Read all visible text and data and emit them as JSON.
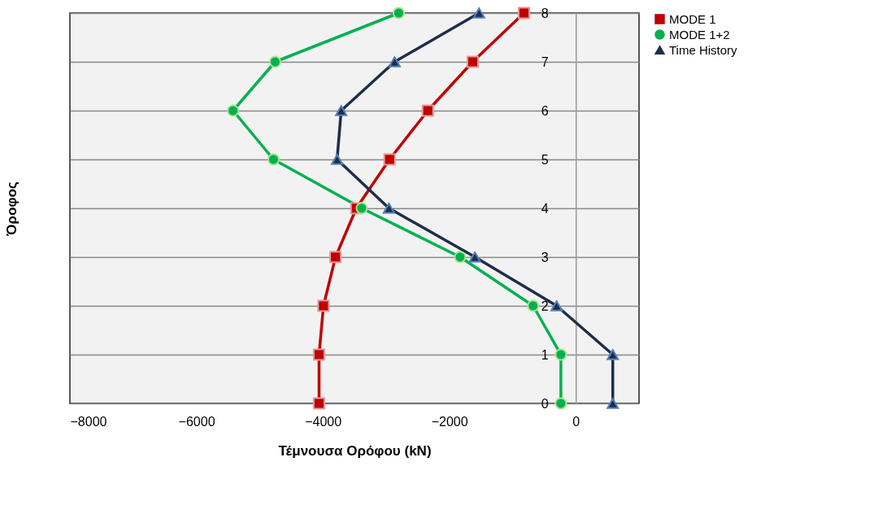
{
  "chart_data": {
    "type": "line",
    "xlabel": "Τέμνουσα Ορόφου (kN)",
    "ylabel": "Όροφος",
    "xlim": [
      -8000,
      1000
    ],
    "xticks": [
      -8000,
      -6000,
      -4000,
      -2000,
      0
    ],
    "ylim": [
      0,
      8
    ],
    "yticks": [
      0,
      1,
      2,
      3,
      4,
      5,
      6,
      7,
      8
    ],
    "grid": "y",
    "legend": "right",
    "line_style": "solid",
    "series": [
      {
        "name": "MODE 1",
        "color": "#c00000",
        "marker": "square",
        "x": [
          -4060,
          -4060,
          -3990,
          -3800,
          -3470,
          -2945,
          -2340,
          -1630,
          -820
        ],
        "values": [
          0,
          1,
          2,
          3,
          4,
          5,
          6,
          7,
          8
        ]
      },
      {
        "name": "MODE 1+2",
        "color": "#00b050",
        "marker": "circle",
        "x": [
          -236,
          -236,
          -675,
          -1830,
          -3385,
          -4780,
          -5420,
          -4755,
          -2800
        ],
        "values": [
          0,
          1,
          2,
          3,
          4,
          5,
          6,
          7,
          8
        ]
      },
      {
        "name": "Time History",
        "color": "#1f2d4a",
        "marker": "triangle",
        "x": [
          585,
          585,
          -303,
          -1595,
          -2955,
          -3775,
          -3710,
          -2865,
          -1530
        ],
        "values": [
          0,
          1,
          2,
          3,
          4,
          5,
          6,
          7,
          8
        ]
      }
    ]
  }
}
